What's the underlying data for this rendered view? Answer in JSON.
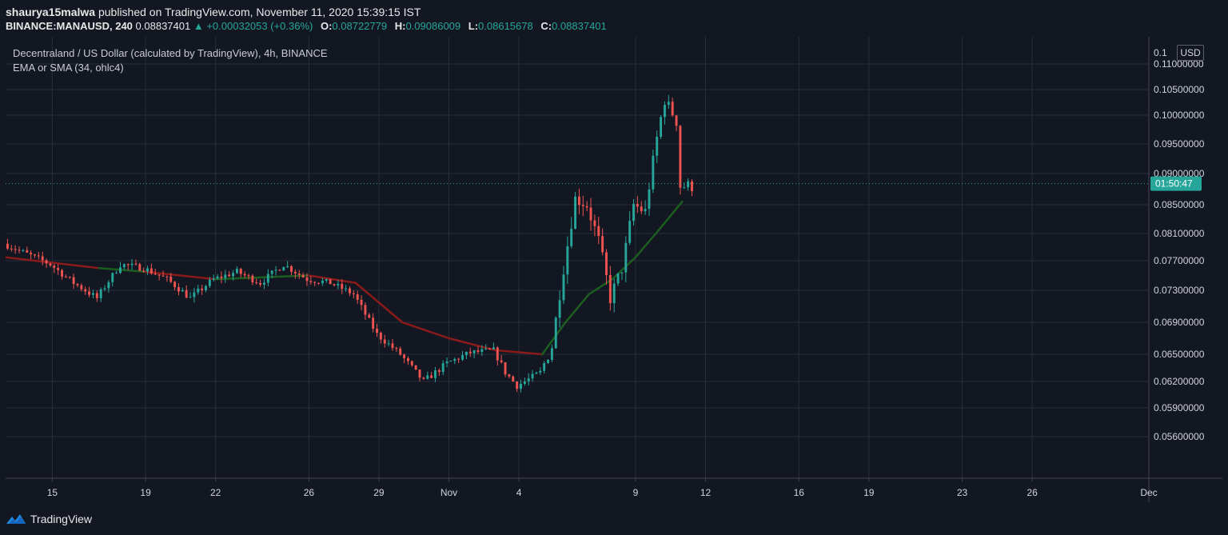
{
  "header": {
    "author": "shaurya15malwa",
    "published_text": "published on TradingView.com, November 11, 2020 15:39:15 IST",
    "symbol": "BINANCE:MANAUSD, 240",
    "last": "0.08837401",
    "change": "▲ +0.00032053 (+0.36%)",
    "open_label": "O:",
    "open": "0.08722779",
    "high_label": "H:",
    "high": "0.09086009",
    "low_label": "L:",
    "low": "0.08615678",
    "close_label": "C:",
    "close": "0.08837401"
  },
  "legend": {
    "title": "Decentraland / US Dollar (calculated by TradingView), 4h, BINANCE",
    "indicator": "EMA or SMA (34, ohlc4)"
  },
  "price_axis": {
    "currency": "USD",
    "countdown": "01:50:47",
    "ticks": [
      "0.11000000",
      "0.10500000",
      "0.10000000",
      "0.09500000",
      "0.09000000",
      "0.08500000",
      "0.08100000",
      "0.07700000",
      "0.07300000",
      "0.06900000",
      "0.06500000",
      "0.06200000",
      "0.05900000",
      "0.05600000"
    ],
    "top_partial": "0.1"
  },
  "time_axis": {
    "ticks": [
      "15",
      "19",
      "22",
      "26",
      "29",
      "Nov",
      "4",
      "9",
      "12",
      "16",
      "19",
      "23",
      "26",
      "Dec"
    ]
  },
  "footer": {
    "brand": "TradingView"
  },
  "colors": {
    "background": "#131722",
    "grid": "#2a2e39",
    "up": "#26a69a",
    "down": "#ef5350",
    "ema_green": "#1b5e20",
    "ema_red": "#8b1a1a",
    "countdown_bg": "#26a69a"
  },
  "chart_data": {
    "type": "candlestick",
    "title": "Decentraland / US Dollar (calculated by TradingView), 4h, BINANCE",
    "interval": "4h",
    "x_range": [
      "2020-10-13",
      "2020-12-01"
    ],
    "y_range": [
      0.0555,
      0.1125
    ],
    "price_scale": "custom (nonlinear tick spacing as printed)",
    "grid": true,
    "ema_period": 34,
    "last_price": 0.08837401,
    "trend_points": [
      {
        "date": "2020-10-13",
        "price": 0.0795
      },
      {
        "date": "2020-10-15",
        "price": 0.0765
      },
      {
        "date": "2020-10-16",
        "price": 0.074
      },
      {
        "date": "2020-10-17",
        "price": 0.072
      },
      {
        "date": "2020-10-18",
        "price": 0.0765
      },
      {
        "date": "2020-10-19",
        "price": 0.076
      },
      {
        "date": "2020-10-20",
        "price": 0.0745
      },
      {
        "date": "2020-10-21",
        "price": 0.072
      },
      {
        "date": "2020-10-22",
        "price": 0.0745
      },
      {
        "date": "2020-10-23",
        "price": 0.0755
      },
      {
        "date": "2020-10-24",
        "price": 0.074
      },
      {
        "date": "2020-10-25",
        "price": 0.0765
      },
      {
        "date": "2020-10-26",
        "price": 0.0745
      },
      {
        "date": "2020-10-27",
        "price": 0.074
      },
      {
        "date": "2020-10-28",
        "price": 0.0725
      },
      {
        "date": "2020-10-29",
        "price": 0.0675
      },
      {
        "date": "2020-10-30",
        "price": 0.065
      },
      {
        "date": "2020-10-31",
        "price": 0.062
      },
      {
        "date": "2020-11-01",
        "price": 0.064
      },
      {
        "date": "2020-11-02",
        "price": 0.0652
      },
      {
        "date": "2020-11-03",
        "price": 0.0655
      },
      {
        "date": "2020-11-03T12:00",
        "price": 0.063
      },
      {
        "date": "2020-11-04",
        "price": 0.0615
      },
      {
        "date": "2020-11-05",
        "price": 0.063
      },
      {
        "date": "2020-11-05T12:00",
        "price": 0.066
      },
      {
        "date": "2020-11-06",
        "price": 0.076
      },
      {
        "date": "2020-11-06T12:00",
        "price": 0.086
      },
      {
        "date": "2020-11-07",
        "price": 0.085
      },
      {
        "date": "2020-11-07T12:00",
        "price": 0.08
      },
      {
        "date": "2020-11-08",
        "price": 0.072
      },
      {
        "date": "2020-11-08T12:00",
        "price": 0.076
      },
      {
        "date": "2020-11-09",
        "price": 0.085
      },
      {
        "date": "2020-11-09T12:00",
        "price": 0.084
      },
      {
        "date": "2020-11-10",
        "price": 0.096
      },
      {
        "date": "2020-11-10T08:00",
        "price": 0.103
      },
      {
        "date": "2020-11-10T20:00",
        "price": 0.099
      },
      {
        "date": "2020-11-11",
        "price": 0.088
      }
    ],
    "ema_points": [
      {
        "date": "2020-10-13",
        "price": 0.0775
      },
      {
        "date": "2020-10-17",
        "price": 0.076
      },
      {
        "date": "2020-10-19",
        "price": 0.0755
      },
      {
        "date": "2020-10-22",
        "price": 0.0745
      },
      {
        "date": "2020-10-26",
        "price": 0.075
      },
      {
        "date": "2020-10-28",
        "price": 0.074
      },
      {
        "date": "2020-10-30",
        "price": 0.069
      },
      {
        "date": "2020-11-01",
        "price": 0.067
      },
      {
        "date": "2020-11-03",
        "price": 0.0655
      },
      {
        "date": "2020-11-05",
        "price": 0.065
      },
      {
        "date": "2020-11-06",
        "price": 0.069
      },
      {
        "date": "2020-11-07",
        "price": 0.0725
      },
      {
        "date": "2020-11-08",
        "price": 0.0745
      },
      {
        "date": "2020-11-09",
        "price": 0.0775
      },
      {
        "date": "2020-11-10",
        "price": 0.0815
      },
      {
        "date": "2020-11-11",
        "price": 0.0855
      }
    ]
  }
}
